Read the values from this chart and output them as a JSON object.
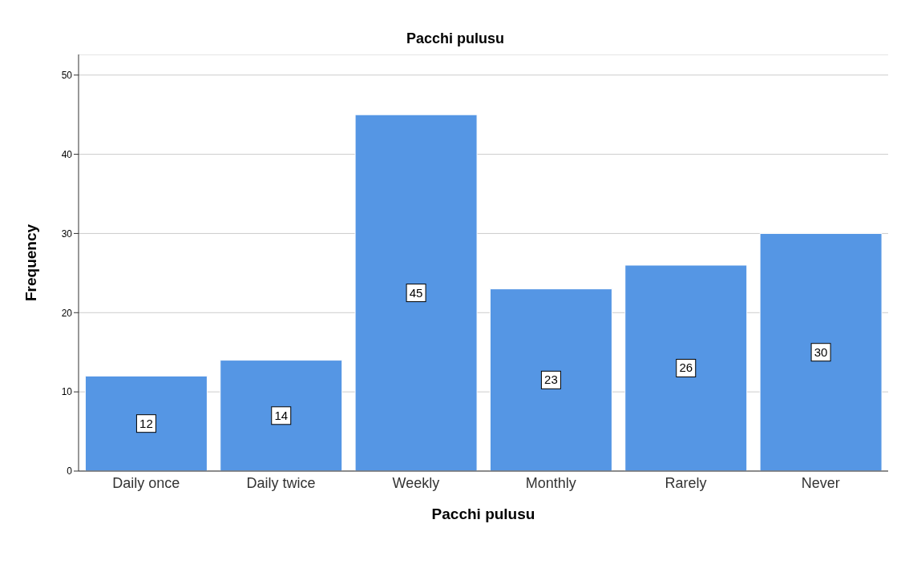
{
  "chart_data": {
    "type": "bar",
    "title": "Pacchi pulusu",
    "xlabel": "Pacchi pulusu",
    "ylabel": "Frequency",
    "categories": [
      "Daily once",
      "Daily twice",
      "Weekly",
      "Monthly",
      "Rarely",
      "Never"
    ],
    "values": [
      12,
      14,
      45,
      23,
      26,
      30
    ],
    "color": "#5596e4",
    "ylim": [
      0,
      52.6
    ],
    "yticks": [
      0,
      10,
      20,
      30,
      40,
      50
    ],
    "grid": "y",
    "data_labels": true
  }
}
